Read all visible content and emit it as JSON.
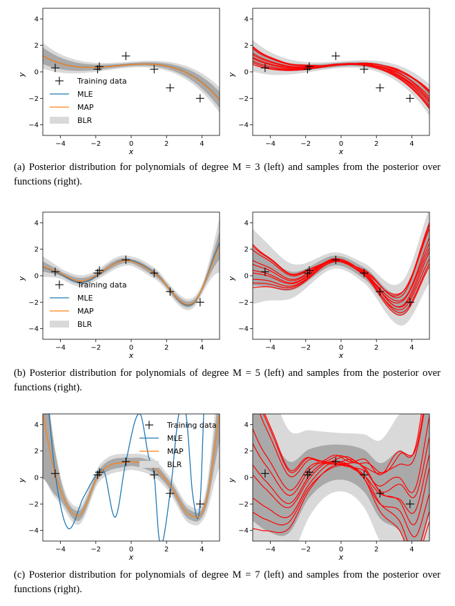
{
  "captions": [
    {
      "label": "(a)",
      "text": "Posterior distribution for polynomials of degree M = 3 (left) and samples from the posterior over functions (right)."
    },
    {
      "label": "(b)",
      "text": "Posterior distribution for polynomials of degree M = 5 (left) and samples from the posterior over functions (right)."
    },
    {
      "label": "(c)",
      "text": "Posterior distribution for polynomials of degree M = 7 (left) and samples from the posterior over functions (right)."
    }
  ],
  "colors": {
    "mle": "#1f77b4",
    "map": "#ff7f0e",
    "sample": "#ff0000",
    "band_outer": "#d9d9d9",
    "band_inner": "#a9a9a9"
  },
  "chart_data": [
    {
      "panel": "a-left",
      "type": "line",
      "degree": 3,
      "xlabel": "x",
      "ylabel": "y",
      "xlim": [
        -5,
        5
      ],
      "ylim": [
        -4.8,
        4.8
      ],
      "xticks": [
        -4,
        -2,
        0,
        2,
        4
      ],
      "yticks": [
        -4,
        -2,
        0,
        2,
        4
      ],
      "training_data": {
        "x": [
          -4.3,
          -1.9,
          -1.8,
          -0.3,
          1.3,
          2.2,
          3.9
        ],
        "y": [
          0.3,
          0.2,
          0.4,
          1.2,
          0.2,
          -1.2,
          -2.0
        ]
      },
      "series": [
        {
          "name": "MLE",
          "coef": [
            0.56,
            0.092,
            -0.04,
            -0.017
          ]
        },
        {
          "name": "MAP",
          "coef": [
            0.55,
            0.09,
            -0.04,
            -0.017
          ]
        }
      ],
      "blr_std": {
        "inner": [
          0.12,
          0.02
        ],
        "outer": [
          0.22,
          0.03
        ]
      },
      "legend": {
        "entries": [
          "Training data",
          "MLE",
          "MAP",
          "BLR"
        ],
        "position": "lower-left"
      }
    },
    {
      "panel": "a-right",
      "type": "line",
      "degree": 3,
      "xlabel": "x",
      "ylabel": "y",
      "xlim": [
        -5,
        5
      ],
      "ylim": [
        -4.8,
        4.8
      ],
      "xticks": [
        -4,
        -2,
        0,
        2,
        4
      ],
      "yticks": [
        -4,
        -2,
        0,
        2,
        4
      ],
      "training_data": {
        "x": [
          -4.3,
          -1.9,
          -1.8,
          -0.3,
          1.3,
          2.2,
          3.9
        ],
        "y": [
          0.3,
          0.2,
          0.4,
          1.2,
          0.2,
          -1.2,
          -2.0
        ]
      },
      "samples": {
        "count": 10,
        "coef": [
          0.55,
          0.09,
          -0.04,
          -0.017
        ],
        "spread": 0.25
      }
    },
    {
      "panel": "b-left",
      "type": "line",
      "degree": 5,
      "xlabel": "x",
      "ylabel": "y",
      "xlim": [
        -5,
        5
      ],
      "ylim": [
        -4.8,
        4.8
      ],
      "xticks": [
        -4,
        -2,
        0,
        2,
        4
      ],
      "yticks": [
        -4,
        -2,
        0,
        2,
        4
      ],
      "training_data": {
        "x": [
          -4.3,
          -1.9,
          -1.8,
          -0.3,
          1.3,
          2.2,
          3.9
        ],
        "y": [
          0.3,
          0.2,
          0.4,
          1.2,
          0.2,
          -1.2,
          -2.0
        ]
      },
      "series": [
        {
          "name": "MLE",
          "anchors": {
            "x": [
              -4.3,
              -2.8,
              -0.3,
              1.3,
              3.5,
              5.0
            ],
            "y": [
              0.3,
              -0.5,
              1.2,
              0.25,
              -2.1,
              2.5
            ]
          }
        },
        {
          "name": "MAP",
          "anchors": {
            "x": [
              -4.3,
              -2.8,
              -0.3,
              1.3,
              3.5,
              5.0
            ],
            "y": [
              0.35,
              -0.4,
              1.15,
              0.2,
              -2.05,
              2.3
            ]
          }
        }
      ],
      "blr_std": {
        "inner": [
          0.3,
          0.15,
          1.0
        ],
        "outer": [
          0.7,
          0.35,
          2.0
        ]
      },
      "legend": {
        "entries": [
          "Training data",
          "MLE",
          "MAP",
          "BLR"
        ],
        "position": "lower-left"
      }
    },
    {
      "panel": "b-right",
      "type": "line",
      "degree": 5,
      "xlabel": "x",
      "ylabel": "y",
      "xlim": [
        -5,
        5
      ],
      "ylim": [
        -4.8,
        4.8
      ],
      "xticks": [
        -4,
        -2,
        0,
        2,
        4
      ],
      "yticks": [
        -4,
        -2,
        0,
        2,
        4
      ],
      "training_data": {
        "x": [
          -4.3,
          -1.9,
          -1.8,
          -0.3,
          1.3,
          2.2,
          3.9
        ],
        "y": [
          0.3,
          0.2,
          0.4,
          1.2,
          0.2,
          -1.2,
          -2.0
        ]
      },
      "samples": {
        "count": 10,
        "anchors": {
          "x": [
            -4.3,
            -2.8,
            -0.3,
            1.3,
            3.5,
            5.0
          ],
          "y": [
            0.35,
            -0.4,
            1.15,
            0.2,
            -2.05,
            2.3
          ]
        },
        "spread": 0.6
      }
    },
    {
      "panel": "c-left",
      "type": "line",
      "degree": 7,
      "xlabel": "x",
      "ylabel": "y",
      "xlim": [
        -5,
        5
      ],
      "ylim": [
        -4.8,
        4.8
      ],
      "xticks": [
        -4,
        -2,
        0,
        2,
        4
      ],
      "yticks": [
        -4,
        -2,
        0,
        2,
        4
      ],
      "training_data": {
        "x": [
          -4.3,
          -1.9,
          -1.8,
          -0.3,
          1.3,
          2.2,
          3.9
        ],
        "y": [
          0.3,
          0.2,
          0.4,
          1.2,
          0.2,
          -1.2,
          -2.0
        ]
      },
      "series": [
        {
          "name": "MLE",
          "points": {
            "x": [
              -4.65,
              -4.3,
              -3.6,
              -2.7,
              -1.9,
              -1.55,
              -0.9,
              -0.3,
              0.5,
              1.0,
              1.3,
              1.6,
              2.2,
              2.7,
              3.1,
              3.5,
              3.9,
              4.1
            ],
            "y": [
              4.8,
              0.3,
              -3.8,
              -1.5,
              0.3,
              0.5,
              -3.0,
              1.2,
              4.8,
              1.5,
              0.2,
              -4.8,
              -1.2,
              4.8,
              4.8,
              -1.5,
              -2.0,
              4.8
            ]
          }
        },
        {
          "name": "MAP",
          "anchors": {
            "x": [
              -5.0,
              -4.3,
              -3.0,
              -1.8,
              -0.3,
              1.3,
              2.2,
              3.3,
              4.2,
              5.0
            ],
            "y": [
              4.8,
              0.3,
              -2.9,
              0.3,
              1.15,
              0.7,
              -0.6,
              -2.8,
              -2.0,
              4.8
            ]
          }
        }
      ],
      "blr_std": {
        "inner": [
          4.8,
          0.3,
          2.0
        ],
        "outer": [
          4.8,
          0.6,
          4.0
        ]
      },
      "legend": {
        "entries": [
          "Training data",
          "MLE",
          "MAP",
          "BLR"
        ],
        "position": "upper-right"
      }
    },
    {
      "panel": "c-right",
      "type": "line",
      "degree": 7,
      "xlabel": "x",
      "ylabel": "y",
      "xlim": [
        -5,
        5
      ],
      "ylim": [
        -4.8,
        4.8
      ],
      "xticks": [
        -4,
        -2,
        0,
        2,
        4
      ],
      "yticks": [
        -4,
        -2,
        0,
        2,
        4
      ],
      "training_data": {
        "x": [
          -4.3,
          -1.9,
          -1.8,
          -0.3,
          1.3,
          2.2,
          3.9
        ],
        "y": [
          0.3,
          0.2,
          0.4,
          1.2,
          0.2,
          -1.2,
          -2.0
        ]
      },
      "samples": {
        "count": 10,
        "anchors": {
          "x": [
            -5.0,
            -4.3,
            -3.0,
            -1.8,
            -0.3,
            1.3,
            2.2,
            3.3,
            4.2,
            5.0
          ],
          "y": [
            2.0,
            0.3,
            -1.5,
            0.3,
            1.15,
            0.5,
            -1.0,
            -1.0,
            -2.0,
            2.5
          ]
        },
        "spread": 2.2
      }
    }
  ]
}
